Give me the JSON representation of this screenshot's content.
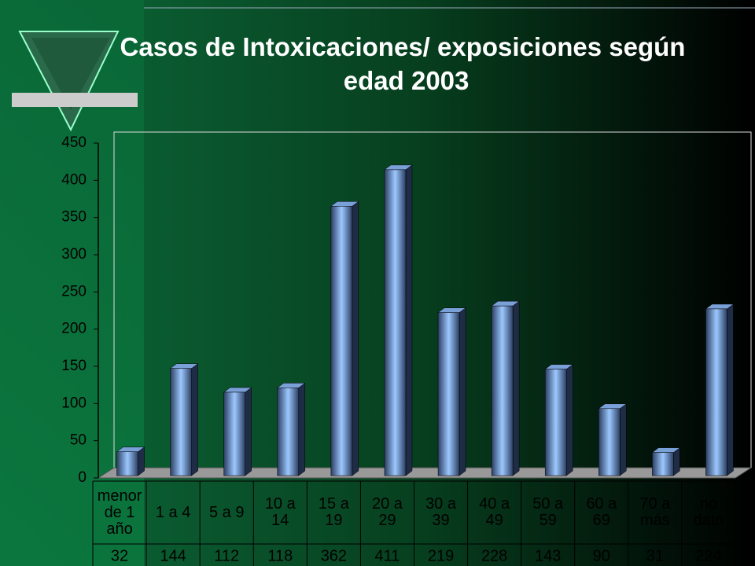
{
  "chart_data": {
    "type": "bar",
    "title": "Casos de Intoxicaciones/ exposiciones según edad 2003",
    "categories": [
      "menor de 1 año",
      "1 a 4",
      "5 a 9",
      "10 a 14",
      "15 a 19",
      "20 a 29",
      "30 a 39",
      "40 a 49",
      "50 a 59",
      "60 a 69",
      "70 a más",
      "no dato"
    ],
    "values": [
      32,
      144,
      112,
      118,
      362,
      411,
      219,
      228,
      143,
      90,
      31,
      224
    ],
    "color": "#6f9fdc",
    "ylim": [
      0,
      450
    ],
    "yticks": [
      0,
      50,
      100,
      150,
      200,
      250,
      300,
      350,
      400,
      450
    ]
  }
}
